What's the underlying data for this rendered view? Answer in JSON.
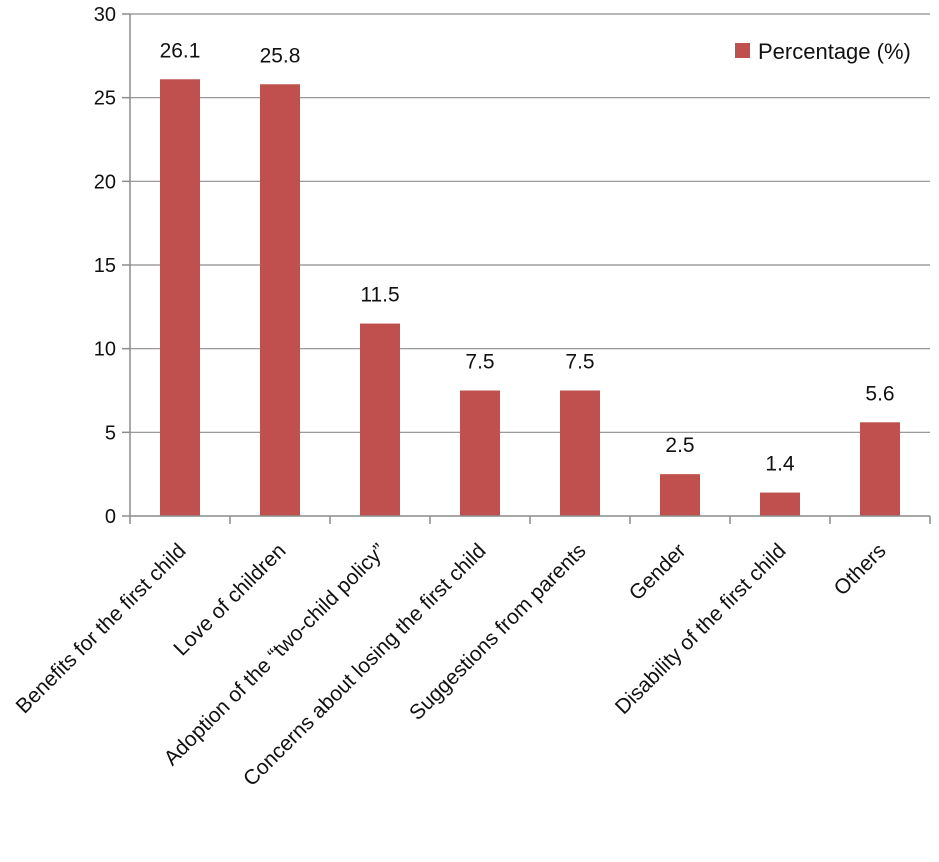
{
  "chart_data": {
    "type": "bar",
    "categories": [
      "Benefits for the first child",
      "Love of children",
      "Adoption of the “two-child policy”",
      "Concerns about losing the first child",
      "Suggestions from parents",
      "Gender",
      "Disability of the first child",
      "Others"
    ],
    "series": [
      {
        "name": "Percentage (%)",
        "values": [
          26.1,
          25.8,
          11.5,
          7.5,
          7.5,
          2.5,
          1.4,
          5.6
        ],
        "color": "#c0504d"
      }
    ],
    "data_labels": [
      "26.1",
      "25.8",
      "11.5",
      "7.5",
      "7.5",
      "2.5",
      "1.4",
      "5.6"
    ],
    "yticks": [
      "0",
      "5",
      "10",
      "15",
      "20",
      "25",
      "30"
    ],
    "ylim": [
      0,
      30
    ],
    "grid": true,
    "legend_position": "top-right",
    "title": "",
    "xlabel": "",
    "ylabel": ""
  }
}
